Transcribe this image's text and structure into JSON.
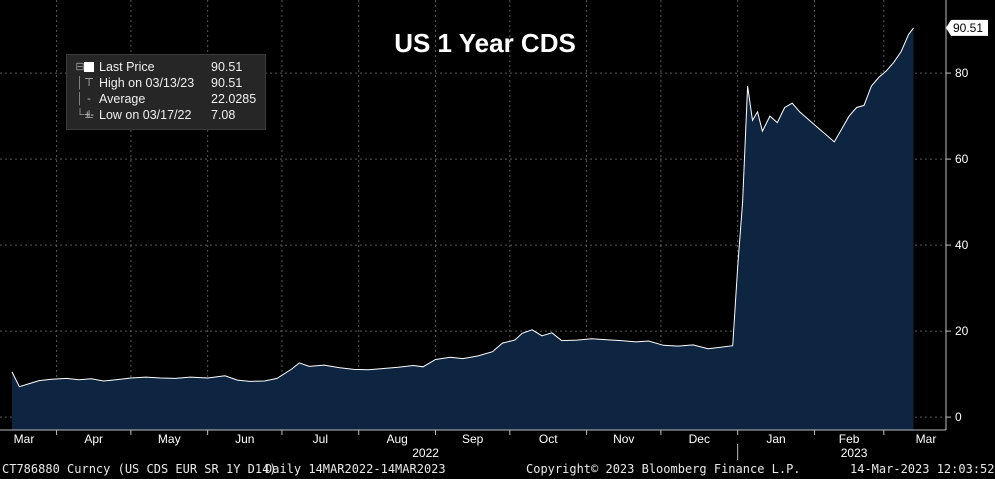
{
  "chart_data": {
    "type": "area",
    "title": "US 1 Year CDS",
    "series_name": "CT786880 Curncy (US CDS EUR SR 1Y D14)",
    "ylim": [
      -3,
      97
    ],
    "y_ticks": [
      0,
      20,
      40,
      60,
      80
    ],
    "y_tick_labels": [
      "0",
      "20",
      "40",
      "60",
      "80"
    ],
    "last_value_label": "90.51",
    "grid": true,
    "x_range": [
      "2022-03-14",
      "2023-03-14"
    ],
    "x_months": [
      {
        "label": "Mar",
        "date": "2022-03-01"
      },
      {
        "label": "Apr",
        "date": "2022-04-01"
      },
      {
        "label": "May",
        "date": "2022-05-01"
      },
      {
        "label": "Jun",
        "date": "2022-06-01"
      },
      {
        "label": "Jul",
        "date": "2022-07-01"
      },
      {
        "label": "Aug",
        "date": "2022-08-01"
      },
      {
        "label": "Sep",
        "date": "2022-09-01"
      },
      {
        "label": "Oct",
        "date": "2022-10-01"
      },
      {
        "label": "Nov",
        "date": "2022-11-01"
      },
      {
        "label": "Dec",
        "date": "2022-12-01"
      },
      {
        "label": "Jan",
        "date": "2023-01-01"
      },
      {
        "label": "Feb",
        "date": "2023-02-01"
      },
      {
        "label": "Mar",
        "date": "2023-03-01"
      }
    ],
    "x_years": [
      {
        "label": "2022",
        "date": "2022-08-28"
      },
      {
        "label": "2023",
        "date": "2023-02-17"
      }
    ],
    "points": [
      [
        "2022-03-14",
        10.5
      ],
      [
        "2022-03-17",
        7.08
      ],
      [
        "2022-03-21",
        7.8
      ],
      [
        "2022-03-25",
        8.5
      ],
      [
        "2022-03-30",
        8.8
      ],
      [
        "2022-04-05",
        9.0
      ],
      [
        "2022-04-10",
        8.7
      ],
      [
        "2022-04-15",
        8.9
      ],
      [
        "2022-04-20",
        8.4
      ],
      [
        "2022-04-25",
        8.7
      ],
      [
        "2022-05-01",
        9.1
      ],
      [
        "2022-05-07",
        9.3
      ],
      [
        "2022-05-13",
        9.1
      ],
      [
        "2022-05-19",
        9.0
      ],
      [
        "2022-05-25",
        9.3
      ],
      [
        "2022-06-01",
        9.1
      ],
      [
        "2022-06-08",
        9.6
      ],
      [
        "2022-06-13",
        8.6
      ],
      [
        "2022-06-18",
        8.3
      ],
      [
        "2022-06-24",
        8.4
      ],
      [
        "2022-06-29",
        9.0
      ],
      [
        "2022-07-05",
        11.2
      ],
      [
        "2022-07-08",
        12.6
      ],
      [
        "2022-07-12",
        11.8
      ],
      [
        "2022-07-18",
        12.1
      ],
      [
        "2022-07-24",
        11.5
      ],
      [
        "2022-07-30",
        11.1
      ],
      [
        "2022-08-05",
        11.0
      ],
      [
        "2022-08-11",
        11.3
      ],
      [
        "2022-08-17",
        11.6
      ],
      [
        "2022-08-23",
        12.0
      ],
      [
        "2022-08-27",
        11.7
      ],
      [
        "2022-09-01",
        13.4
      ],
      [
        "2022-09-07",
        13.9
      ],
      [
        "2022-09-12",
        13.6
      ],
      [
        "2022-09-18",
        14.2
      ],
      [
        "2022-09-24",
        15.2
      ],
      [
        "2022-09-28",
        17.2
      ],
      [
        "2022-10-03",
        17.9
      ],
      [
        "2022-10-06",
        19.5
      ],
      [
        "2022-10-10",
        20.3
      ],
      [
        "2022-10-14",
        18.9
      ],
      [
        "2022-10-18",
        19.6
      ],
      [
        "2022-10-22",
        17.8
      ],
      [
        "2022-10-28",
        17.9
      ],
      [
        "2022-11-03",
        18.2
      ],
      [
        "2022-11-09",
        18.0
      ],
      [
        "2022-11-15",
        17.8
      ],
      [
        "2022-11-21",
        17.5
      ],
      [
        "2022-11-26",
        17.7
      ],
      [
        "2022-12-02",
        16.7
      ],
      [
        "2022-12-08",
        16.5
      ],
      [
        "2022-12-14",
        16.8
      ],
      [
        "2022-12-20",
        15.9
      ],
      [
        "2022-12-26",
        16.3
      ],
      [
        "2022-12-30",
        16.6
      ],
      [
        "2023-01-01",
        35.0
      ],
      [
        "2023-01-03",
        50.0
      ],
      [
        "2023-01-05",
        77.0
      ],
      [
        "2023-01-07",
        69.0
      ],
      [
        "2023-01-09",
        71.0
      ],
      [
        "2023-01-11",
        66.5
      ],
      [
        "2023-01-14",
        70.0
      ],
      [
        "2023-01-17",
        68.5
      ],
      [
        "2023-01-20",
        72.0
      ],
      [
        "2023-01-23",
        73.0
      ],
      [
        "2023-01-26",
        71.0
      ],
      [
        "2023-01-29",
        69.5
      ],
      [
        "2023-02-02",
        67.5
      ],
      [
        "2023-02-06",
        65.5
      ],
      [
        "2023-02-09",
        64.0
      ],
      [
        "2023-02-12",
        67.0
      ],
      [
        "2023-02-15",
        70.0
      ],
      [
        "2023-02-18",
        72.0
      ],
      [
        "2023-02-21",
        72.5
      ],
      [
        "2023-02-24",
        77.0
      ],
      [
        "2023-02-27",
        79.0
      ],
      [
        "2023-03-02",
        80.5
      ],
      [
        "2023-03-05",
        82.5
      ],
      [
        "2023-03-08",
        85.0
      ],
      [
        "2023-03-11",
        89.0
      ],
      [
        "2023-03-13",
        90.51
      ]
    ]
  },
  "legend": {
    "items": [
      {
        "label": "Last Price",
        "value": "90.51"
      },
      {
        "label": "High on 03/13/23",
        "value": "90.51"
      },
      {
        "label": "Average",
        "value": "22.0285"
      },
      {
        "label": "Low on 03/17/22",
        "value": "7.08"
      }
    ]
  },
  "footer": {
    "ticker": "CT786880 Curncy (US CDS EUR SR 1Y D14)",
    "frequency": "Daily 14MAR2022-14MAR2023",
    "copyright": "Copyright© 2023 Bloomberg Finance L.P.",
    "timestamp": "14-Mar-2023 12:03:52"
  },
  "colors": {
    "background": "#000000",
    "area_fill": "#0e2541",
    "line": "#ffffff",
    "grid": "#5a5a5a",
    "text": "#ffffff"
  }
}
